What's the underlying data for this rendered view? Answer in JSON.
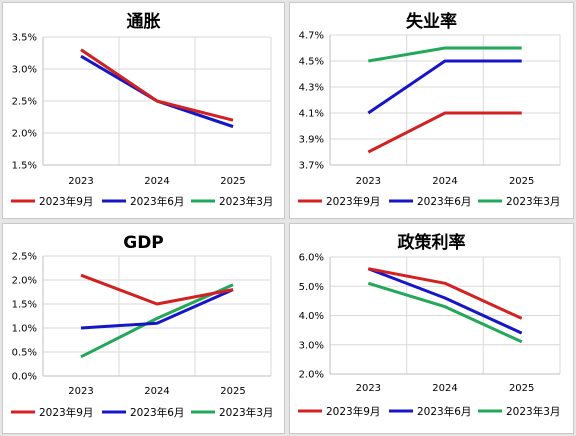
{
  "colors": {
    "sep": "#d42020",
    "jun": "#1616c8",
    "mar": "#21a858"
  },
  "chart_data": [
    {
      "type": "line",
      "title": "通胀",
      "categories": [
        "2023",
        "2024",
        "2025"
      ],
      "ylim": [
        1.5,
        3.5
      ],
      "yticks": [
        1.5,
        2.0,
        2.5,
        3.0,
        3.5
      ],
      "ydecimals": 1,
      "series": [
        {
          "name": "2023年9月",
          "color": "#d42020",
          "values": [
            3.3,
            2.5,
            2.2
          ]
        },
        {
          "name": "2023年6月",
          "color": "#1616c8",
          "values": [
            3.2,
            2.5,
            2.1
          ]
        },
        {
          "name": "2023年3月",
          "color": "#21a858",
          "values": [
            3.3,
            2.5,
            2.1
          ]
        }
      ],
      "legend": "bottom",
      "grid": true
    },
    {
      "type": "line",
      "title": "失业率",
      "categories": [
        "2023",
        "2024",
        "2025"
      ],
      "ylim": [
        3.7,
        4.7
      ],
      "yticks": [
        3.7,
        3.9,
        4.1,
        4.3,
        4.5,
        4.7
      ],
      "ydecimals": 1,
      "series": [
        {
          "name": "2023年9月",
          "color": "#d42020",
          "values": [
            3.8,
            4.1,
            4.1
          ]
        },
        {
          "name": "2023年6月",
          "color": "#1616c8",
          "values": [
            4.1,
            4.5,
            4.5
          ]
        },
        {
          "name": "2023年3月",
          "color": "#21a858",
          "values": [
            4.5,
            4.6,
            4.6
          ]
        }
      ],
      "legend": "bottom",
      "grid": true
    },
    {
      "type": "line",
      "title": "GDP",
      "categories": [
        "2023",
        "2024",
        "2025"
      ],
      "ylim": [
        0.0,
        2.5
      ],
      "yticks": [
        0.0,
        0.5,
        1.0,
        1.5,
        2.0,
        2.5
      ],
      "ydecimals": 1,
      "series": [
        {
          "name": "2023年9月",
          "color": "#d42020",
          "values": [
            2.1,
            1.5,
            1.8
          ]
        },
        {
          "name": "2023年6月",
          "color": "#1616c8",
          "values": [
            1.0,
            1.1,
            1.8
          ]
        },
        {
          "name": "2023年3月",
          "color": "#21a858",
          "values": [
            0.4,
            1.2,
            1.9
          ]
        }
      ],
      "legend": "bottom",
      "grid": true
    },
    {
      "type": "line",
      "title": "政策利率",
      "categories": [
        "2023",
        "2024",
        "2025"
      ],
      "ylim": [
        2.0,
        6.0
      ],
      "yticks": [
        2.0,
        3.0,
        4.0,
        5.0,
        6.0
      ],
      "ydecimals": 1,
      "series": [
        {
          "name": "2023年9月",
          "color": "#d42020",
          "values": [
            5.6,
            5.1,
            3.9
          ]
        },
        {
          "name": "2023年6月",
          "color": "#1616c8",
          "values": [
            5.6,
            4.6,
            3.4
          ]
        },
        {
          "name": "2023年3月",
          "color": "#21a858",
          "values": [
            5.1,
            4.3,
            3.1
          ]
        }
      ],
      "legend": "bottom",
      "grid": true
    }
  ]
}
